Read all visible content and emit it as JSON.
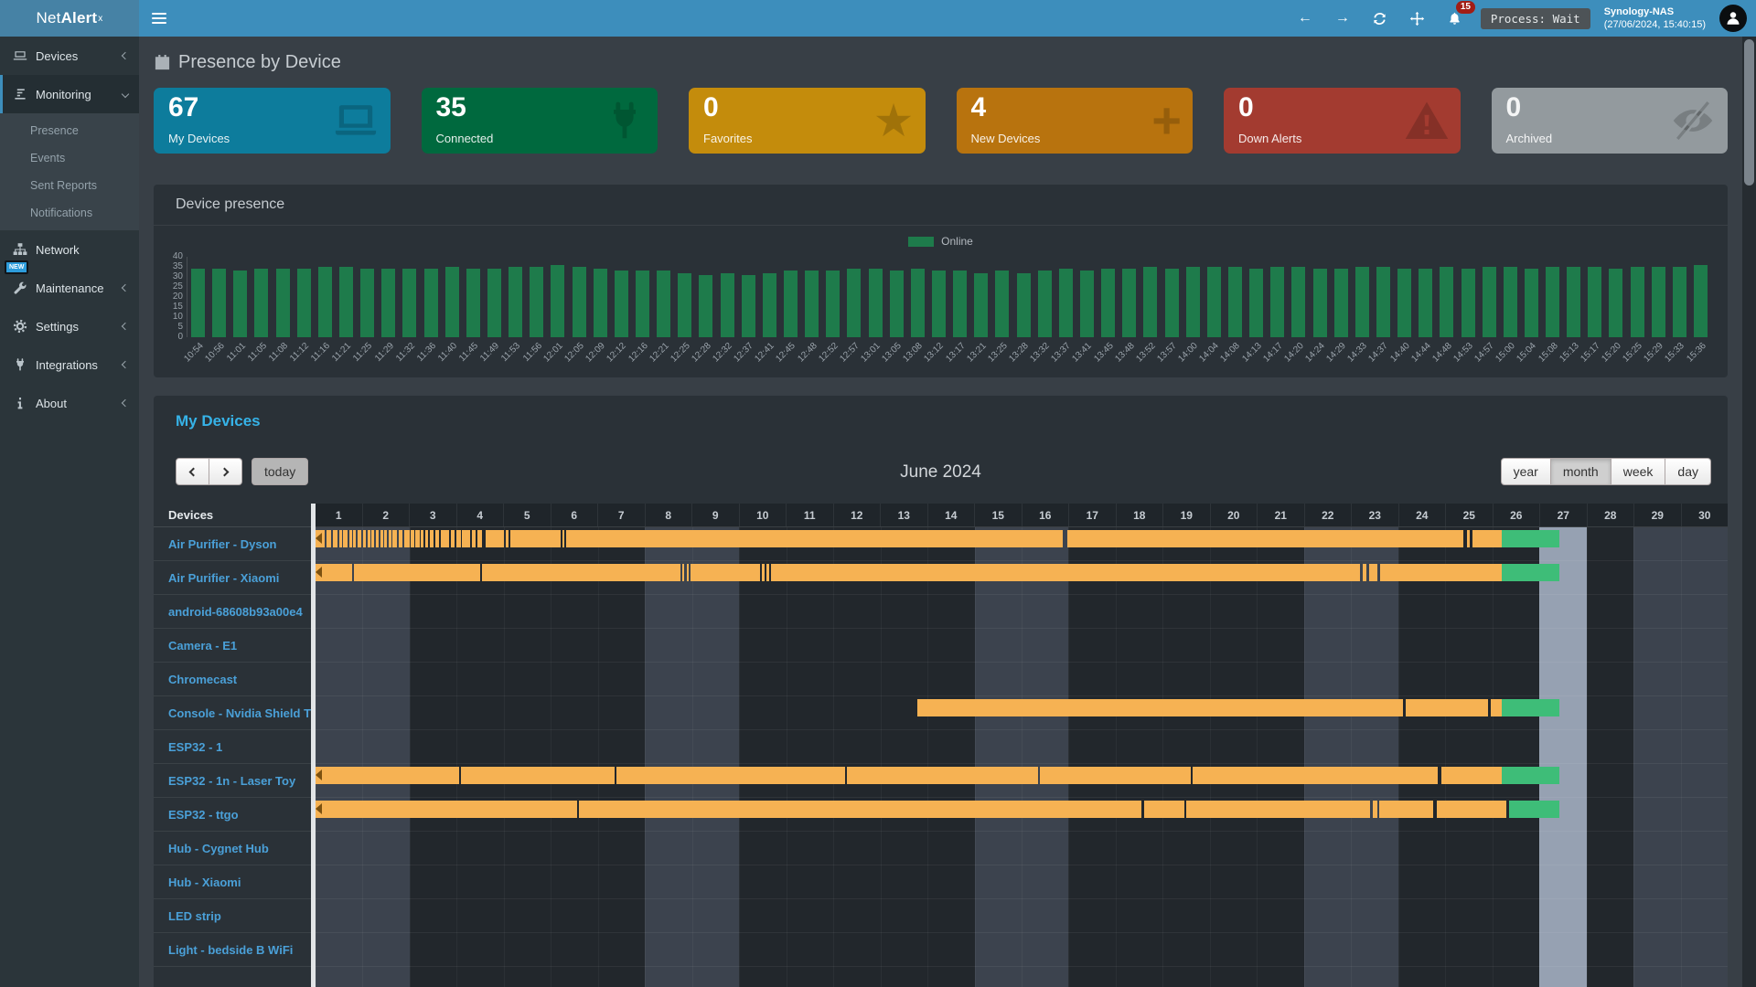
{
  "navbar": {
    "brand_prefix": "Net",
    "brand_bold": "Alert",
    "brand_sup": "x",
    "notification_count": "15",
    "process_label": "Process: Wait",
    "host_name": "Synology-NAS",
    "host_time": "(27/06/2024, 15:40:15)"
  },
  "sidebar": {
    "items": [
      {
        "label": "Devices",
        "icon": "laptop-icon",
        "chevron": "left"
      },
      {
        "label": "Monitoring",
        "icon": "chart-icon",
        "chevron": "down",
        "active": true
      },
      {
        "label": "Network",
        "icon": "sitemap-icon",
        "chevron": "none"
      },
      {
        "label": "Maintenance",
        "icon": "wrench-icon",
        "chevron": "left",
        "badge": "NEW"
      },
      {
        "label": "Settings",
        "icon": "gear-icon",
        "chevron": "left"
      },
      {
        "label": "Integrations",
        "icon": "plug-icon",
        "chevron": "left"
      },
      {
        "label": "About",
        "icon": "info-icon",
        "chevron": "left"
      }
    ],
    "monitoring_submenu": [
      "Presence",
      "Events",
      "Sent Reports",
      "Notifications"
    ]
  },
  "page": {
    "title": "Presence by Device"
  },
  "cards": [
    {
      "value": "67",
      "label": "My Devices",
      "color": "#0d7c9c",
      "icon": "laptop-icon"
    },
    {
      "value": "35",
      "label": "Connected",
      "color": "#00693e",
      "icon": "plug-icon"
    },
    {
      "value": "0",
      "label": "Favorites",
      "color": "#c48c0c",
      "icon": "star-icon"
    },
    {
      "value": "4",
      "label": "New Devices",
      "color": "#b8730e",
      "icon": "plus-icon"
    },
    {
      "value": "0",
      "label": "Down Alerts",
      "color": "#a33b30",
      "icon": "warning-icon"
    },
    {
      "value": "0",
      "label": "Archived",
      "color": "#939a9e",
      "icon": "eye-slash-icon"
    }
  ],
  "chart_data": {
    "type": "bar",
    "title": "Device presence",
    "legend": "Online",
    "legend_position": "top-center",
    "bar_color": "#1e7b4b",
    "ylim": [
      0,
      40
    ],
    "yticks": [
      0,
      5,
      10,
      15,
      20,
      25,
      30,
      35,
      40
    ],
    "grid": false,
    "x": [
      "10:54",
      "10:56",
      "11:01",
      "11:05",
      "11:08",
      "11:12",
      "11:16",
      "11:21",
      "11:25",
      "11:29",
      "11:32",
      "11:36",
      "11:40",
      "11:45",
      "11:49",
      "11:53",
      "11:56",
      "12:01",
      "12:05",
      "12:09",
      "12:12",
      "12:16",
      "12:21",
      "12:25",
      "12:28",
      "12:32",
      "12:37",
      "12:41",
      "12:45",
      "12:48",
      "12:52",
      "12:57",
      "13:01",
      "13:05",
      "13:08",
      "13:12",
      "13:17",
      "13:21",
      "13:25",
      "13:28",
      "13:32",
      "13:37",
      "13:41",
      "13:45",
      "13:48",
      "13:52",
      "13:57",
      "14:00",
      "14:04",
      "14:08",
      "14:13",
      "14:17",
      "14:20",
      "14:24",
      "14:29",
      "14:33",
      "14:37",
      "14:40",
      "14:44",
      "14:48",
      "14:53",
      "14:57",
      "15:00",
      "15:04",
      "15:08",
      "15:13",
      "15:17",
      "15:20",
      "15:25",
      "15:29",
      "15:33",
      "15:36"
    ],
    "values": [
      34,
      34,
      33,
      34,
      34,
      34,
      35,
      35,
      34,
      34,
      34,
      34,
      35,
      34,
      34,
      35,
      35,
      36,
      35,
      34,
      33,
      33,
      33,
      32,
      31,
      32,
      31,
      32,
      33,
      33,
      33,
      34,
      34,
      33,
      34,
      33,
      33,
      32,
      33,
      32,
      33,
      34,
      33,
      34,
      34,
      35,
      34,
      35,
      35,
      35,
      34,
      35,
      35,
      34,
      34,
      35,
      35,
      34,
      34,
      35,
      34,
      35,
      35,
      34,
      35,
      35,
      35,
      34,
      35,
      35,
      35,
      36
    ]
  },
  "calendar": {
    "section_title": "My Devices",
    "today_label": "today",
    "month_title": "June 2024",
    "views": [
      "year",
      "month",
      "week",
      "day"
    ],
    "active_view": "month"
  },
  "timeline": {
    "header": "Devices",
    "day_labels": [
      "1",
      "2",
      "3",
      "4",
      "5",
      "6",
      "7",
      "8",
      "9",
      "10",
      "11",
      "12",
      "13",
      "14",
      "15",
      "16",
      "17",
      "18",
      "19",
      "20",
      "21",
      "22",
      "23",
      "24",
      "25",
      "26",
      "27",
      "28",
      "29",
      "30"
    ],
    "weekend_days": [
      1,
      2,
      8,
      9,
      15,
      16,
      22,
      23,
      29,
      30
    ],
    "today_day": 27,
    "colors": {
      "past": "#f6b253",
      "now": "#3ebd78",
      "today_col": "#96a1b2",
      "weekend_col": "#3c434e"
    },
    "devices": [
      {
        "name": "Air Purifier - Dyson",
        "continues": true,
        "past": [
          [
            1,
            1.2
          ],
          [
            1.23,
            1.34
          ],
          [
            1.37,
            1.47
          ],
          [
            1.5,
            1.56
          ],
          [
            1.59,
            1.68
          ],
          [
            1.71,
            1.77
          ],
          [
            1.8,
            1.86
          ],
          [
            1.89,
            1.98
          ],
          [
            2.01,
            2.07
          ],
          [
            2.1,
            2.16
          ],
          [
            2.19,
            2.25
          ],
          [
            2.28,
            2.34
          ],
          [
            2.37,
            2.43
          ],
          [
            2.46,
            2.52
          ],
          [
            2.55,
            2.61
          ],
          [
            2.64,
            2.73
          ],
          [
            2.76,
            2.85
          ],
          [
            2.88,
            3.0
          ],
          [
            3.03,
            3.09
          ],
          [
            3.12,
            3.21
          ],
          [
            3.24,
            3.3
          ],
          [
            3.33,
            3.39
          ],
          [
            3.42,
            3.51
          ],
          [
            3.54,
            3.63
          ],
          [
            3.66,
            3.84
          ],
          [
            3.87,
            3.96
          ],
          [
            3.99,
            4.08
          ],
          [
            4.11,
            4.29
          ],
          [
            4.32,
            4.41
          ],
          [
            4.44,
            4.53
          ],
          [
            4.62,
            5.0
          ],
          [
            5.04,
            5.1
          ],
          [
            5.13,
            6.2
          ],
          [
            6.24,
            6.28
          ],
          [
            6.32,
            16.88
          ],
          [
            16.98,
            25.38
          ],
          [
            25.46,
            25.52
          ],
          [
            25.58,
            26.2
          ]
        ],
        "now": [
          [
            26.2,
            27.42
          ]
        ]
      },
      {
        "name": "Air Purifier - Xiaomi",
        "continues": true,
        "past": [
          [
            1,
            1.78
          ],
          [
            1.82,
            4.5
          ],
          [
            4.54,
            8.76
          ],
          [
            8.8,
            8.84
          ],
          [
            8.88,
            8.92
          ],
          [
            8.96,
            10.44
          ],
          [
            10.48,
            10.54
          ],
          [
            10.58,
            10.64
          ],
          [
            10.68,
            23.18
          ],
          [
            23.24,
            23.32
          ],
          [
            23.38,
            23.56
          ],
          [
            23.62,
            26.2
          ]
        ],
        "now": [
          [
            26.2,
            27.42
          ]
        ]
      },
      {
        "name": "android-68608b93a00e4",
        "continues": false,
        "past": [],
        "now": []
      },
      {
        "name": "Camera - E1",
        "continues": false,
        "past": [],
        "now": []
      },
      {
        "name": "Chromecast",
        "continues": false,
        "past": [],
        "now": []
      },
      {
        "name": "Console - Nvidia Shield T",
        "continues": false,
        "past": [
          [
            13.78,
            24.1
          ],
          [
            24.16,
            25.9
          ],
          [
            25.96,
            26.2
          ]
        ],
        "now": [
          [
            26.2,
            27.42
          ]
        ]
      },
      {
        "name": "ESP32 - 1",
        "continues": false,
        "past": [],
        "now": []
      },
      {
        "name": "ESP32 - 1n - Laser Toy",
        "continues": true,
        "past": [
          [
            1,
            4.05
          ],
          [
            4.09,
            7.35
          ],
          [
            7.39,
            12.25
          ],
          [
            12.29,
            16.35
          ],
          [
            16.39,
            19.6
          ],
          [
            19.64,
            24.85
          ],
          [
            24.91,
            26.2
          ]
        ],
        "now": [
          [
            26.2,
            27.42
          ]
        ]
      },
      {
        "name": "ESP32 - ttgo",
        "continues": true,
        "past": [
          [
            1,
            6.55
          ],
          [
            6.6,
            18.55
          ],
          [
            18.6,
            19.45
          ],
          [
            19.5,
            23.4
          ],
          [
            23.46,
            23.55
          ],
          [
            23.6,
            24.75
          ],
          [
            24.82,
            26.3
          ]
        ],
        "now": [
          [
            26.35,
            27.42
          ]
        ]
      },
      {
        "name": "Hub - Cygnet Hub",
        "continues": false,
        "past": [],
        "now": []
      },
      {
        "name": "Hub - Xiaomi",
        "continues": false,
        "past": [],
        "now": []
      },
      {
        "name": "LED strip",
        "continues": false,
        "past": [],
        "now": []
      },
      {
        "name": "Light - bedside B WiFi",
        "continues": false,
        "past": [],
        "now": []
      }
    ]
  }
}
